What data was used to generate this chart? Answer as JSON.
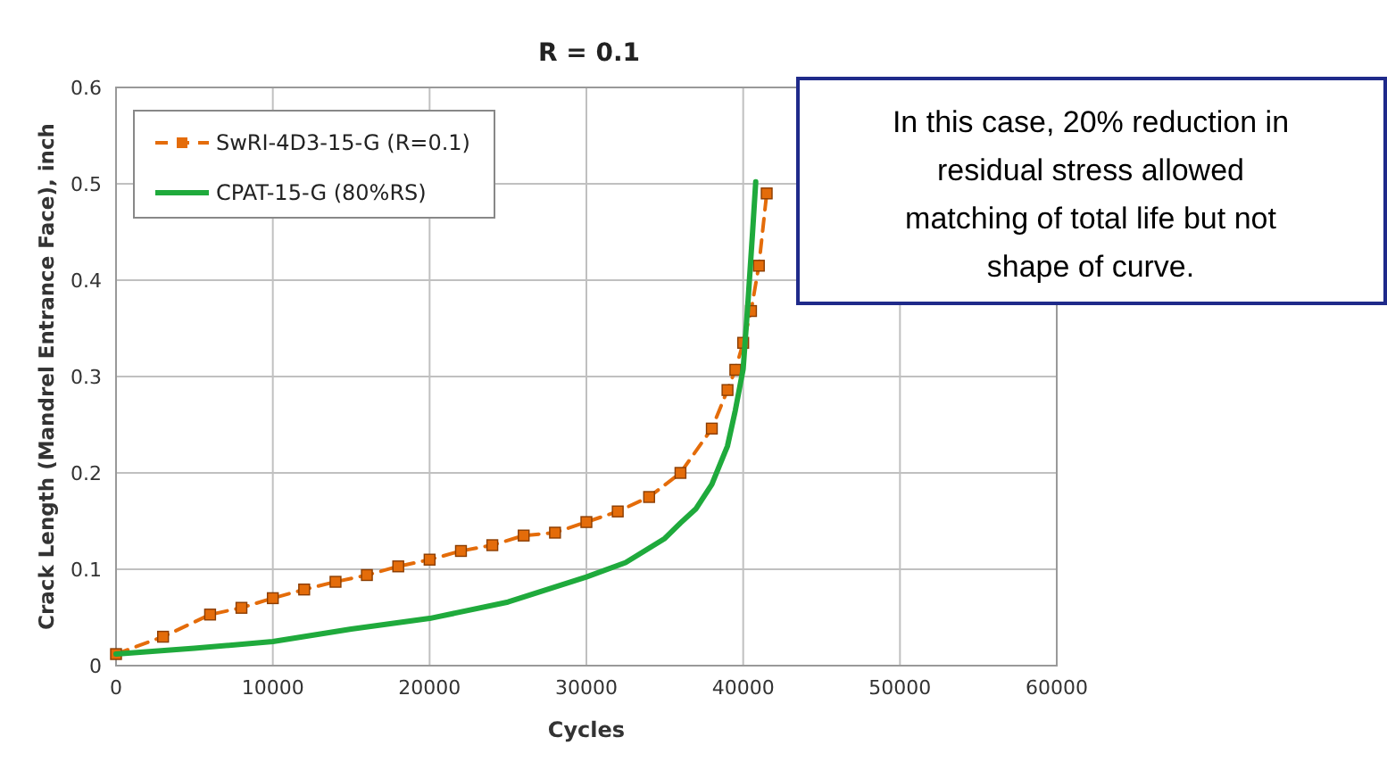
{
  "chart_data": {
    "type": "line",
    "title": "R = 0.1",
    "xlabel": "Cycles",
    "ylabel": "Crack Length (Mandrel Entrance Face), inch",
    "xlim": [
      0,
      60000
    ],
    "xticks": [
      0,
      10000,
      20000,
      30000,
      40000,
      50000,
      60000
    ],
    "ylim": [
      0,
      0.6
    ],
    "yticks": [
      0,
      0.1,
      0.2,
      0.3,
      0.4,
      0.5,
      0.6
    ],
    "grid": true,
    "legend": "top left",
    "annotations": [
      "In this case, 20% reduction in residual stress allowed matching of total life but not shape of curve."
    ],
    "series": [
      {
        "name": "SwRI-4D3-15-G (R=0.1)",
        "color": "#e46c0a",
        "marker": "square",
        "line_style": "dashed",
        "x": [
          0,
          3000,
          6000,
          8000,
          10000,
          12000,
          14000,
          16000,
          18000,
          20000,
          22000,
          24000,
          26000,
          28000,
          30000,
          32000,
          34000,
          36000,
          38000,
          39000,
          39500,
          40000,
          40500,
          41000,
          41500
        ],
        "values": [
          0.012,
          0.03,
          0.053,
          0.06,
          0.07,
          0.079,
          0.087,
          0.094,
          0.103,
          0.11,
          0.119,
          0.125,
          0.135,
          0.138,
          0.149,
          0.16,
          0.175,
          0.2,
          0.246,
          0.286,
          0.307,
          0.335,
          0.368,
          0.415,
          0.49
        ]
      },
      {
        "name": "CPAT-15-G (80%RS)",
        "color": "#1faa3c",
        "marker": "none",
        "line_style": "solid",
        "x": [
          0,
          5000,
          10000,
          15000,
          20000,
          25000,
          30000,
          32500,
          35000,
          36000,
          37000,
          38000,
          39000,
          39500,
          40000,
          40300,
          40600,
          40800
        ],
        "values": [
          0.012,
          0.018,
          0.025,
          0.038,
          0.049,
          0.066,
          0.092,
          0.107,
          0.132,
          0.148,
          0.163,
          0.188,
          0.228,
          0.265,
          0.308,
          0.376,
          0.45,
          0.502
        ]
      }
    ]
  }
}
